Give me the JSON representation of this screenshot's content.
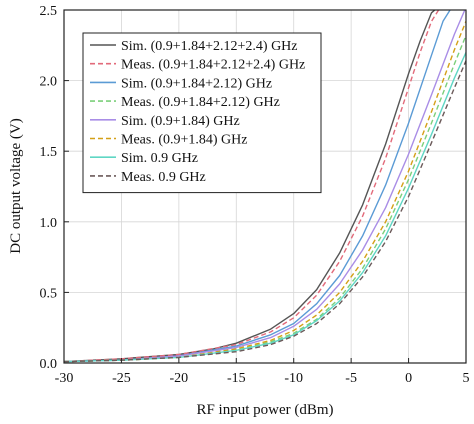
{
  "chart_data": {
    "type": "line",
    "title": "",
    "xlabel": "RF input power (dBm)",
    "ylabel": "DC output voltage (V)",
    "xlim": [
      -30,
      5
    ],
    "ylim": [
      0,
      2.5
    ],
    "x_ticks": [
      -30,
      -25,
      -20,
      -15,
      -10,
      -5,
      0,
      5
    ],
    "y_ticks": [
      0.0,
      0.5,
      1.0,
      1.5,
      2.0,
      2.5
    ],
    "x_tick_labels": [
      "-30",
      "-25",
      "-20",
      "-15",
      "-10",
      "-5",
      "0",
      "5"
    ],
    "y_tick_labels": [
      "0.0",
      "0.5",
      "1.0",
      "1.5",
      "2.0",
      "2.5"
    ],
    "grid": true,
    "legend_position": "top-right",
    "series": [
      {
        "name": "Sim. (0.9+1.84+2.12+2.4) GHz",
        "color": "#555555",
        "dashed": false,
        "x": [
          -30,
          -25,
          -20,
          -17,
          -15,
          -12,
          -10,
          -8,
          -6,
          -4,
          -2,
          0,
          1,
          2,
          3
        ],
        "y": [
          0.01,
          0.03,
          0.06,
          0.1,
          0.14,
          0.24,
          0.35,
          0.52,
          0.78,
          1.12,
          1.55,
          2.05,
          2.28,
          2.48,
          2.55
        ]
      },
      {
        "name": "Meas. (0.9+1.84+2.12+2.4) GHz",
        "color": "#e26a7a",
        "dashed": true,
        "x": [
          -30,
          -25,
          -20,
          -15,
          -12,
          -10,
          -8,
          -6,
          -4,
          -2,
          0,
          1,
          2,
          3
        ],
        "y": [
          0.01,
          0.03,
          0.06,
          0.13,
          0.22,
          0.32,
          0.48,
          0.72,
          1.04,
          1.45,
          1.95,
          2.2,
          2.42,
          2.55
        ]
      },
      {
        "name": "Sim. (0.9+1.84+2.12) GHz",
        "color": "#5b9bd5",
        "dashed": false,
        "x": [
          -30,
          -25,
          -20,
          -15,
          -12,
          -10,
          -8,
          -6,
          -4,
          -2,
          0,
          2,
          3,
          4
        ],
        "y": [
          0.01,
          0.02,
          0.05,
          0.12,
          0.2,
          0.28,
          0.42,
          0.62,
          0.9,
          1.26,
          1.7,
          2.18,
          2.42,
          2.55
        ]
      },
      {
        "name": "Meas. (0.9+1.84+2.12) GHz",
        "color": "#7ccf7a",
        "dashed": true,
        "x": [
          -30,
          -25,
          -20,
          -15,
          -12,
          -10,
          -8,
          -6,
          -4,
          -2,
          0,
          2,
          4,
          5
        ],
        "y": [
          0.01,
          0.02,
          0.04,
          0.09,
          0.15,
          0.21,
          0.31,
          0.46,
          0.67,
          0.95,
          1.3,
          1.7,
          2.12,
          2.32
        ]
      },
      {
        "name": "Sim. (0.9+1.84) GHz",
        "color": "#a98de6",
        "dashed": false,
        "x": [
          -30,
          -25,
          -20,
          -15,
          -12,
          -10,
          -8,
          -6,
          -4,
          -2,
          0,
          2,
          4,
          5
        ],
        "y": [
          0.01,
          0.02,
          0.05,
          0.11,
          0.18,
          0.26,
          0.38,
          0.56,
          0.8,
          1.1,
          1.48,
          1.9,
          2.33,
          2.52
        ]
      },
      {
        "name": "Meas. (0.9+1.84) GHz",
        "color": "#d4a017",
        "dashed": true,
        "x": [
          -30,
          -25,
          -20,
          -15,
          -12,
          -10,
          -8,
          -6,
          -4,
          -2,
          0,
          2,
          4,
          5
        ],
        "y": [
          0.01,
          0.02,
          0.04,
          0.1,
          0.16,
          0.23,
          0.34,
          0.5,
          0.72,
          1.0,
          1.36,
          1.78,
          2.22,
          2.42
        ]
      },
      {
        "name": "Sim. 0.9 GHz",
        "color": "#5fd6c4",
        "dashed": false,
        "x": [
          -30,
          -25,
          -20,
          -15,
          -12,
          -10,
          -8,
          -6,
          -4,
          -2,
          0,
          2,
          4,
          5
        ],
        "y": [
          0.01,
          0.02,
          0.04,
          0.09,
          0.14,
          0.2,
          0.3,
          0.44,
          0.64,
          0.9,
          1.24,
          1.62,
          2.02,
          2.2
        ]
      },
      {
        "name": "Meas. 0.9 GHz",
        "color": "#6b5a5a",
        "dashed": true,
        "x": [
          -30,
          -25,
          -20,
          -15,
          -12,
          -10,
          -8,
          -6,
          -4,
          -2,
          0,
          2,
          4,
          5
        ],
        "y": [
          0.01,
          0.02,
          0.04,
          0.08,
          0.13,
          0.19,
          0.28,
          0.42,
          0.61,
          0.86,
          1.18,
          1.56,
          1.95,
          2.14
        ]
      }
    ]
  }
}
